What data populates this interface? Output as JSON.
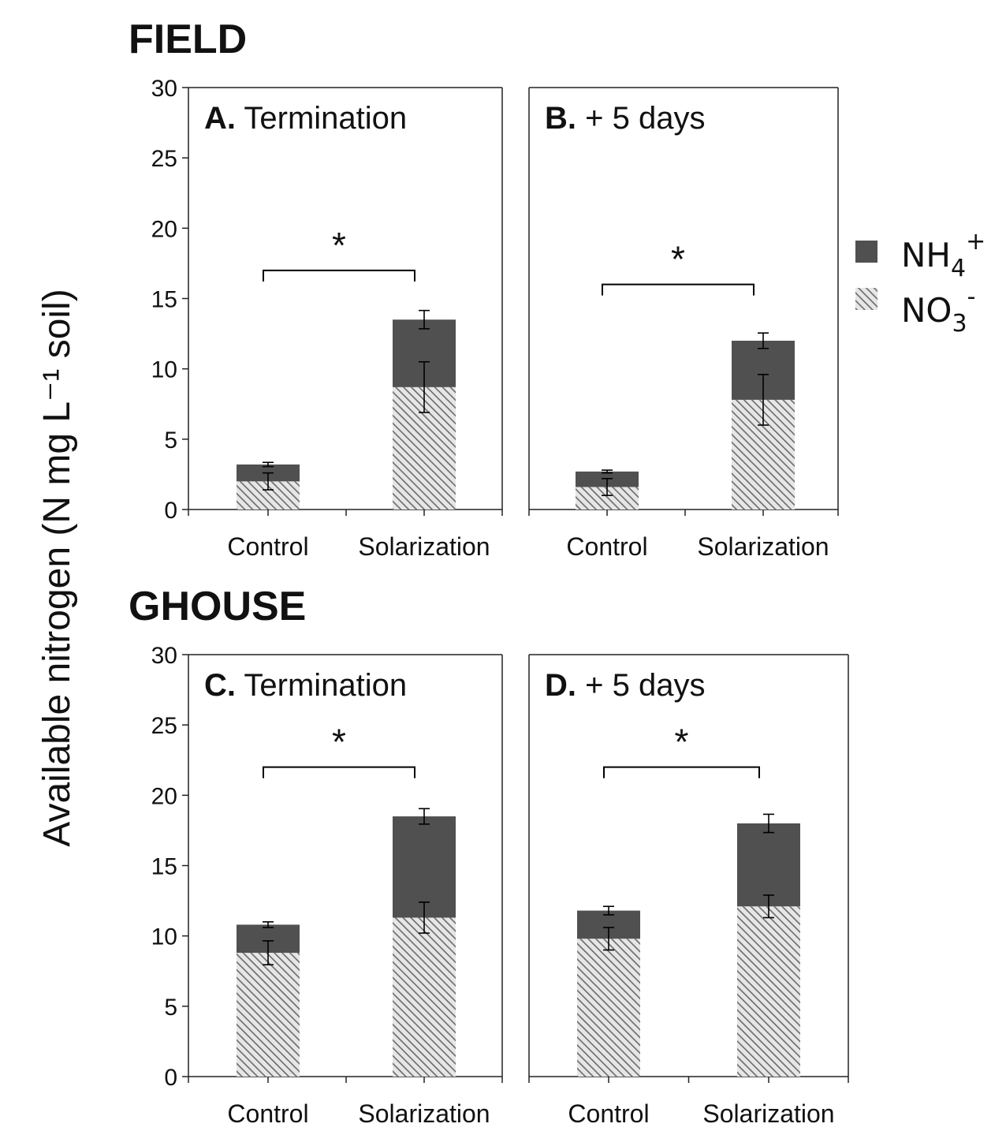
{
  "figure": {
    "y_axis_title": "Available nitrogen (N mg L⁻¹ soil)",
    "sections": [
      "FIELD",
      "GHOUSE"
    ],
    "legend": [
      {
        "base": "NH",
        "sub": "4",
        "sup": "+",
        "pattern": "solid"
      },
      {
        "base": "NO",
        "sub": "3",
        "sup": "-",
        "pattern": "hatched"
      }
    ]
  },
  "colors": {
    "nh4": "#505050",
    "no3_hatch": "#6a6a6a",
    "no3_bg": "#e6e6e6",
    "axis": "#222222"
  },
  "chart_data": [
    {
      "type": "bar",
      "stacked": true,
      "section": "FIELD",
      "panel_letter": "A.",
      "panel_title": "Termination",
      "categories": [
        "Control",
        "Solarization"
      ],
      "series": [
        {
          "name": "NO3-",
          "values": [
            2.0,
            8.7
          ],
          "error": [
            0.6,
            1.8
          ]
        },
        {
          "name": "NH4+",
          "values": [
            1.2,
            4.8
          ],
          "error": [
            0.15,
            0.65
          ]
        }
      ],
      "significance": {
        "from": "Control",
        "to": "Solarization",
        "label": "*",
        "level": 17
      },
      "ylim": [
        0,
        30
      ],
      "yticks": [
        0,
        5,
        10,
        15,
        20,
        25,
        30
      ]
    },
    {
      "type": "bar",
      "stacked": true,
      "section": "FIELD",
      "panel_letter": "B.",
      "panel_title": "+ 5 days",
      "categories": [
        "Control",
        "Solarization"
      ],
      "series": [
        {
          "name": "NO3-",
          "values": [
            1.6,
            7.8
          ],
          "error": [
            0.6,
            1.8
          ]
        },
        {
          "name": "NH4+",
          "values": [
            1.1,
            4.2
          ],
          "error": [
            0.1,
            0.55
          ]
        }
      ],
      "significance": {
        "from": "Control",
        "to": "Solarization",
        "label": "*",
        "level": 16
      },
      "ylim": [
        0,
        30
      ],
      "yticks": []
    },
    {
      "type": "bar",
      "stacked": true,
      "section": "GHOUSE",
      "panel_letter": "C.",
      "panel_title": "Termination",
      "categories": [
        "Control",
        "Solarization"
      ],
      "series": [
        {
          "name": "NO3-",
          "values": [
            8.8,
            11.3
          ],
          "error": [
            0.85,
            1.1
          ]
        },
        {
          "name": "NH4+",
          "values": [
            2.0,
            7.2
          ],
          "error": [
            0.2,
            0.55
          ]
        }
      ],
      "significance": {
        "from": "Control",
        "to": "Solarization",
        "label": "*",
        "level": 22
      },
      "ylim": [
        0,
        30
      ],
      "yticks": [
        0,
        5,
        10,
        15,
        20,
        25,
        30
      ]
    },
    {
      "type": "bar",
      "stacked": true,
      "section": "GHOUSE",
      "panel_letter": "D.",
      "panel_title": "+ 5 days",
      "categories": [
        "Control",
        "Solarization"
      ],
      "series": [
        {
          "name": "NO3-",
          "values": [
            9.8,
            12.1
          ],
          "error": [
            0.8,
            0.8
          ]
        },
        {
          "name": "NH4+",
          "values": [
            2.0,
            5.9
          ],
          "error": [
            0.3,
            0.65
          ]
        }
      ],
      "significance": {
        "from": "Control",
        "to": "Solarization",
        "label": "*",
        "level": 22
      },
      "ylim": [
        0,
        30
      ],
      "yticks": []
    }
  ]
}
